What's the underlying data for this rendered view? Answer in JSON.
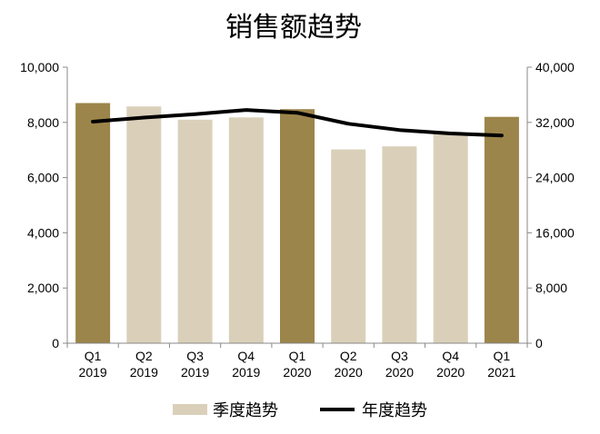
{
  "chart_data": {
    "type": "bar",
    "title": "销售额趋势",
    "categories": [
      [
        "Q1",
        "2019"
      ],
      [
        "Q2",
        "2019"
      ],
      [
        "Q3",
        "2019"
      ],
      [
        "Q4",
        "2019"
      ],
      [
        "Q1",
        "2020"
      ],
      [
        "Q2",
        "2020"
      ],
      [
        "Q3",
        "2020"
      ],
      [
        "Q4",
        "2020"
      ],
      [
        "Q1",
        "2021"
      ]
    ],
    "series": [
      {
        "name": "季度趋势",
        "type": "bar",
        "axis": "left",
        "values": [
          8700,
          8580,
          8100,
          8180,
          8480,
          7020,
          7130,
          7600,
          8200
        ],
        "highlight": [
          true,
          false,
          false,
          false,
          true,
          false,
          false,
          false,
          true
        ]
      },
      {
        "name": "年度趋势",
        "type": "line",
        "axis": "right",
        "values": [
          32100,
          32700,
          33200,
          33800,
          33400,
          31800,
          30900,
          30400,
          30100
        ]
      }
    ],
    "y_left": {
      "min": 0,
      "max": 10000,
      "ticks": [
        "0",
        "2,000",
        "4,000",
        "6,000",
        "8,000",
        "10,000"
      ],
      "tick_values": [
        0,
        2000,
        4000,
        6000,
        8000,
        10000
      ]
    },
    "y_right": {
      "min": 0,
      "max": 40000,
      "ticks": [
        "0",
        "8,000",
        "16,000",
        "24,000",
        "32,000",
        "40,000"
      ],
      "tick_values": [
        0,
        8000,
        16000,
        24000,
        32000,
        40000
      ]
    },
    "grid": false,
    "legend_position": "bottom",
    "colors": {
      "highlight_bar": "#9C854A",
      "bar": "#DAD0BA",
      "line": "#000000",
      "axis": "#888888"
    }
  }
}
